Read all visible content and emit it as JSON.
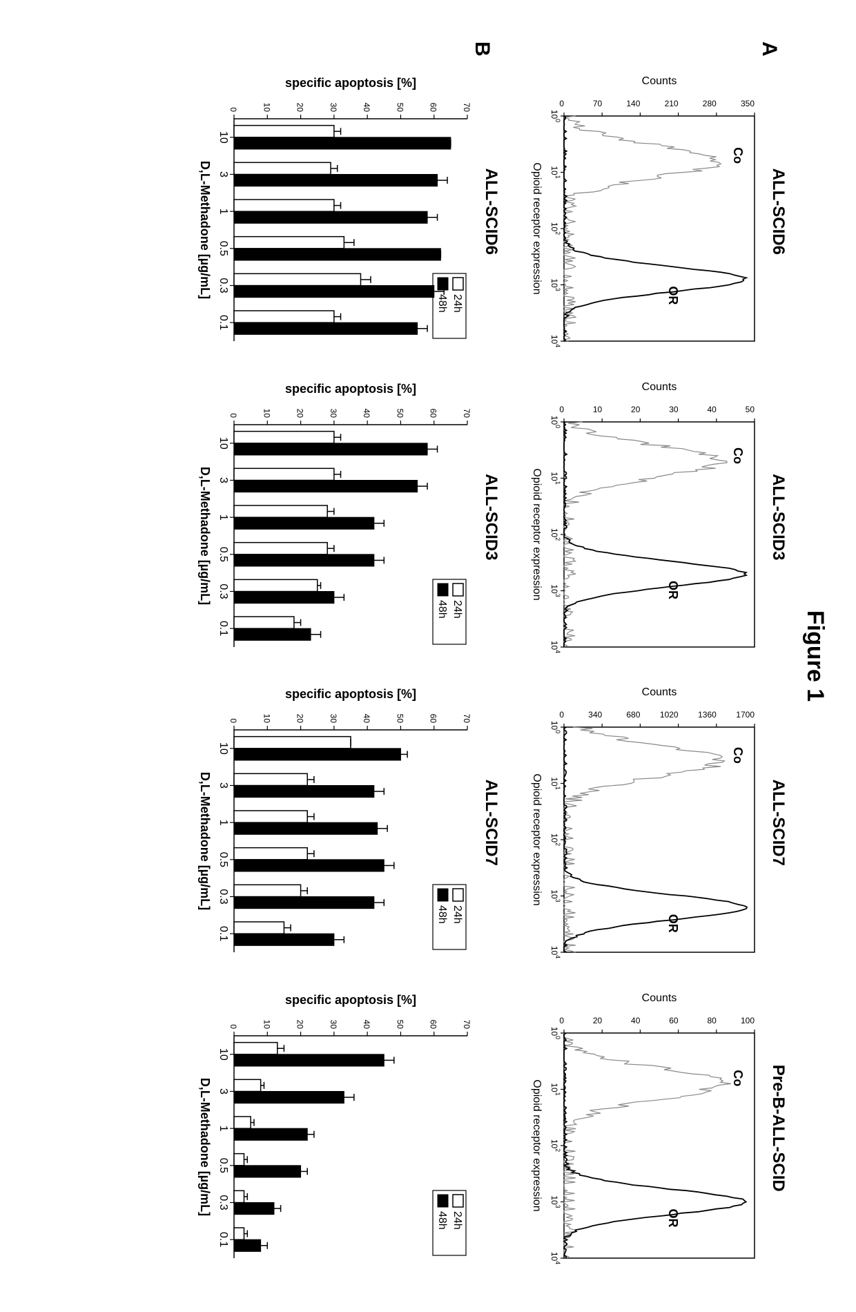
{
  "figure_title": "Figure 1",
  "rowA_label": "A",
  "rowB_label": "B",
  "colors": {
    "bar_open": "#ffffff",
    "bar_solid": "#000000",
    "co_line": "#888888",
    "or_line": "#000000",
    "axis": "#000000",
    "background": "#ffffff"
  },
  "rowA_common": {
    "x_label": "Opioid receptor expression",
    "y_label": "Counts",
    "x_ticks": [
      "10^0",
      "10^1",
      "10^2",
      "10^3",
      "10^4"
    ],
    "co_label": "Co",
    "or_label": "OR"
  },
  "rowA_panels": [
    {
      "title": "ALL-SCID6",
      "y_max": 350,
      "y_ticks": [
        0,
        70,
        140,
        210,
        280,
        350
      ],
      "co_peak_x": 0.8,
      "or_peak_x": 2.9
    },
    {
      "title": "ALL-SCID3",
      "y_max": 50,
      "y_ticks": [
        0,
        10,
        20,
        30,
        40,
        50
      ],
      "co_peak_x": 0.7,
      "or_peak_x": 2.7
    },
    {
      "title": "ALL-SCID7",
      "y_max": 1700,
      "y_ticks": [
        0,
        340,
        680,
        1020,
        1360,
        1700
      ],
      "co_peak_x": 0.6,
      "or_peak_x": 3.2
    },
    {
      "title": "Pre-B-ALL-SCID",
      "y_max": 100,
      "y_ticks": [
        0,
        20,
        40,
        60,
        80,
        100
      ],
      "co_peak_x": 0.9,
      "or_peak_x": 3.0
    }
  ],
  "rowB_common": {
    "y_label": "specific apoptosis [%]",
    "x_label": "D,L-Methadone [µg/mL]",
    "y_max": 70,
    "y_ticks": [
      0,
      10,
      20,
      30,
      40,
      50,
      60,
      70
    ],
    "categories": [
      "10",
      "3",
      "1",
      "0.5",
      "0.3",
      "0.1"
    ],
    "legend_24": "24h",
    "legend_48": "48h"
  },
  "rowB_panels": [
    {
      "title": "ALL-SCID6",
      "v24": [
        30,
        29,
        30,
        33,
        38,
        30
      ],
      "e24": [
        2,
        2,
        2,
        3,
        3,
        2
      ],
      "v48": [
        65,
        61,
        58,
        62,
        60,
        55
      ],
      "e48": [
        0,
        3,
        3,
        0,
        3,
        3
      ]
    },
    {
      "title": "ALL-SCID3",
      "v24": [
        30,
        30,
        28,
        28,
        25,
        18
      ],
      "e24": [
        2,
        2,
        2,
        2,
        1,
        2
      ],
      "v48": [
        58,
        55,
        42,
        42,
        30,
        23
      ],
      "e48": [
        3,
        3,
        3,
        3,
        3,
        3
      ]
    },
    {
      "title": "ALL-SCID7",
      "v24": [
        35,
        22,
        22,
        22,
        20,
        15
      ],
      "e24": [
        0,
        2,
        2,
        2,
        2,
        2
      ],
      "v48": [
        50,
        42,
        43,
        45,
        42,
        30
      ],
      "e48": [
        2,
        3,
        3,
        3,
        3,
        3
      ]
    },
    {
      "title": "",
      "v24": [
        13,
        8,
        5,
        3,
        3,
        3
      ],
      "e24": [
        2,
        1,
        1,
        1,
        1,
        1
      ],
      "v48": [
        45,
        33,
        22,
        20,
        12,
        8
      ],
      "e48": [
        3,
        3,
        2,
        2,
        2,
        2
      ]
    }
  ]
}
